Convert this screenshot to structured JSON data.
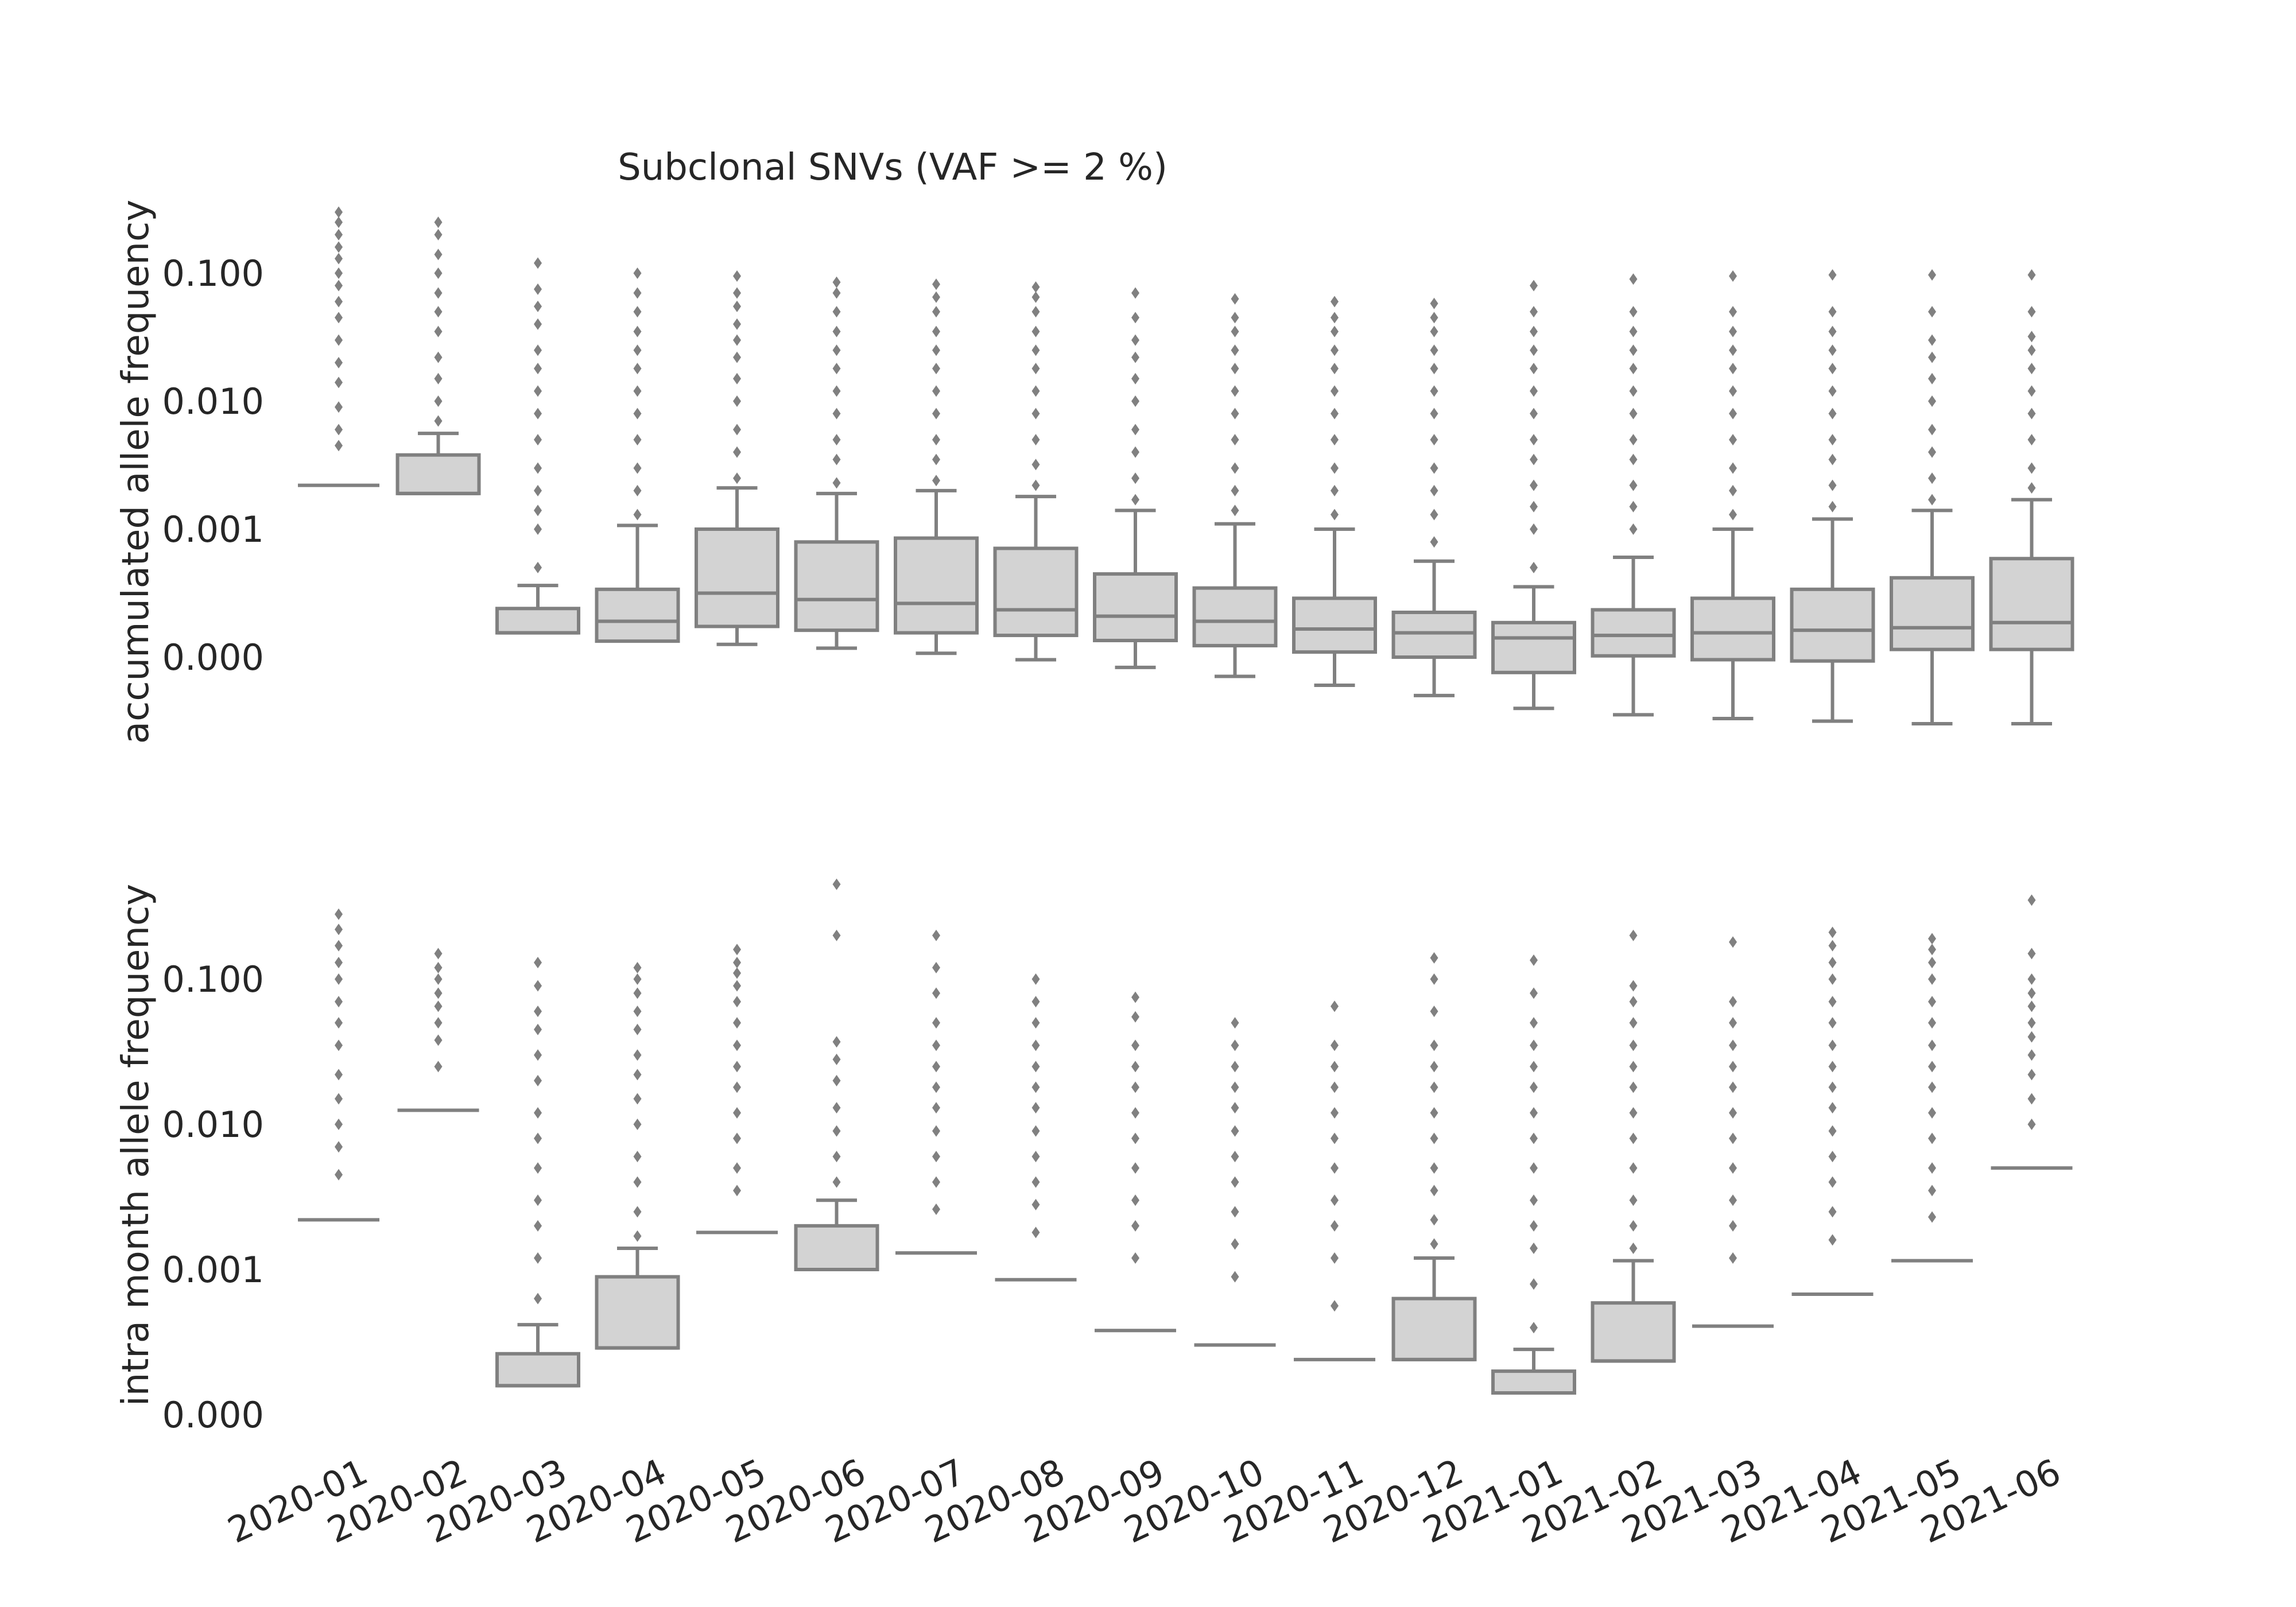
{
  "chart_data": {
    "type": "box",
    "title": "Subclonal SNVs (VAF >= 2 %)",
    "categories": [
      "2020-01",
      "2020-02",
      "2020-03",
      "2020-04",
      "2020-05",
      "2020-06",
      "2020-07",
      "2020-08",
      "2020-09",
      "2020-10",
      "2020-11",
      "2020-12",
      "2021-01",
      "2021-02",
      "2021-03",
      "2021-04",
      "2021-05",
      "2021-06"
    ],
    "xlabel": "",
    "box_color": "#d3d3d3",
    "line_color": "#808080",
    "grid": false,
    "panels": [
      {
        "id": "accumulated",
        "ylabel": "accumulated allele frequency",
        "yticks": [
          0.0,
          0.001,
          0.01,
          0.1
        ],
        "ytick_labels": [
          "0.000",
          "0.001",
          "0.010",
          "0.100"
        ],
        "boxes": [
          {
            "whislo": 0.0022,
            "q1": 0.0022,
            "med": 0.0022,
            "q3": 0.0022,
            "whishi": 0.0022,
            "fliers": [
              0.0045,
              0.006,
              0.009,
              0.014,
              0.02,
              0.03,
              0.045,
              0.06,
              0.08,
              0.1,
              0.13,
              0.16,
              0.2,
              0.25,
              0.3
            ]
          },
          {
            "whislo": 0.0019,
            "q1": 0.0019,
            "med": 0.0019,
            "q3": 0.0038,
            "whishi": 0.0056,
            "fliers": [
              0.007,
              0.01,
              0.015,
              0.022,
              0.035,
              0.05,
              0.07,
              0.1,
              0.14,
              0.2,
              0.25
            ]
          },
          {
            "whislo": 0.00019,
            "q1": 0.00019,
            "med": 0.00019,
            "q3": 0.00038,
            "whishi": 0.00056,
            "fliers": [
              0.0007,
              0.001,
              0.0014,
              0.002,
              0.003,
              0.005,
              0.008,
              0.012,
              0.018,
              0.025,
              0.04,
              0.055,
              0.075,
              0.12
            ]
          },
          {
            "whislo": 0.000125,
            "q1": 0.000125,
            "med": 0.00028,
            "q3": 0.00053,
            "whishi": 0.00107,
            "fliers": [
              0.0013,
              0.002,
              0.003,
              0.005,
              0.008,
              0.012,
              0.018,
              0.025,
              0.035,
              0.05,
              0.07,
              0.1
            ]
          },
          {
            "whislo": 0.0001,
            "q1": 0.00024,
            "med": 0.0005,
            "q3": 0.001,
            "whishi": 0.0021,
            "fliers": [
              0.0025,
              0.004,
              0.006,
              0.01,
              0.015,
              0.022,
              0.03,
              0.04,
              0.055,
              0.07,
              0.095
            ]
          },
          {
            "whislo": 7e-05,
            "q1": 0.00021,
            "med": 0.00045,
            "q3": 0.0009,
            "whishi": 0.0019,
            "fliers": [
              0.0023,
              0.0035,
              0.005,
              0.008,
              0.012,
              0.018,
              0.025,
              0.035,
              0.05,
              0.07,
              0.085
            ]
          },
          {
            "whislo": 3e-05,
            "q1": 0.00019,
            "med": 0.00042,
            "q3": 0.00093,
            "whishi": 0.002,
            "fliers": [
              0.0024,
              0.0035,
              0.005,
              0.008,
              0.012,
              0.018,
              0.025,
              0.035,
              0.05,
              0.065,
              0.082
            ]
          },
          {
            "whislo": -2e-05,
            "q1": 0.00017,
            "med": 0.00037,
            "q3": 0.00085,
            "whishi": 0.0018,
            "fliers": [
              0.0022,
              0.0032,
              0.005,
              0.008,
              0.012,
              0.018,
              0.025,
              0.035,
              0.05,
              0.065,
              0.078
            ]
          },
          {
            "whislo": -8e-05,
            "q1": 0.00013,
            "med": 0.00032,
            "q3": 0.00065,
            "whishi": 0.0014,
            "fliers": [
              0.0017,
              0.0025,
              0.004,
              0.006,
              0.01,
              0.015,
              0.022,
              0.03,
              0.045,
              0.07
            ]
          },
          {
            "whislo": -0.00015,
            "q1": 9e-05,
            "med": 0.00028,
            "q3": 0.00054,
            "whishi": 0.0011,
            "fliers": [
              0.0014,
              0.002,
              0.003,
              0.005,
              0.008,
              0.012,
              0.018,
              0.025,
              0.035,
              0.045,
              0.063
            ]
          },
          {
            "whislo": -0.00022,
            "q1": 4e-05,
            "med": 0.00022,
            "q3": 0.00046,
            "whishi": 0.001,
            "fliers": [
              0.0013,
              0.002,
              0.003,
              0.005,
              0.008,
              0.012,
              0.018,
              0.025,
              0.035,
              0.045,
              0.06
            ]
          },
          {
            "whislo": -0.0003,
            "q1": 0.0,
            "med": 0.00019,
            "q3": 0.00035,
            "whishi": 0.00075,
            "fliers": [
              0.0009,
              0.0013,
              0.002,
              0.003,
              0.005,
              0.008,
              0.012,
              0.018,
              0.025,
              0.035,
              0.045,
              0.058
            ]
          },
          {
            "whislo": -0.0004,
            "q1": -0.00012,
            "med": 0.00015,
            "q3": 0.00027,
            "whishi": 0.00055,
            "fliers": [
              0.0007,
              0.001,
              0.0015,
              0.0022,
              0.0035,
              0.005,
              0.008,
              0.012,
              0.018,
              0.025,
              0.035,
              0.05,
              0.08
            ]
          },
          {
            "whislo": -0.00045,
            "q1": 1e-05,
            "med": 0.00017,
            "q3": 0.00037,
            "whishi": 0.00078,
            "fliers": [
              0.001,
              0.0015,
              0.0022,
              0.0035,
              0.005,
              0.008,
              0.012,
              0.018,
              0.025,
              0.035,
              0.05,
              0.09
            ]
          },
          {
            "whislo": -0.00048,
            "q1": -2e-05,
            "med": 0.00019,
            "q3": 0.00046,
            "whishi": 0.001,
            "fliers": [
              0.0013,
              0.002,
              0.003,
              0.005,
              0.008,
              0.012,
              0.018,
              0.025,
              0.035,
              0.05,
              0.095
            ]
          },
          {
            "whislo": -0.0005,
            "q1": -3e-05,
            "med": 0.00021,
            "q3": 0.00053,
            "whishi": 0.0012,
            "fliers": [
              0.0015,
              0.0022,
              0.0035,
              0.005,
              0.008,
              0.012,
              0.018,
              0.025,
              0.035,
              0.05,
              0.097
            ]
          },
          {
            "whislo": -0.00052,
            "q1": 6e-05,
            "med": 0.00023,
            "q3": 0.00062,
            "whishi": 0.0014,
            "fliers": [
              0.0017,
              0.0025,
              0.004,
              0.006,
              0.01,
              0.015,
              0.022,
              0.03,
              0.05,
              0.097
            ]
          },
          {
            "whislo": -0.00052,
            "q1": 6e-05,
            "med": 0.00027,
            "q3": 0.00077,
            "whishi": 0.0017,
            "fliers": [
              0.0021,
              0.003,
              0.005,
              0.008,
              0.012,
              0.018,
              0.025,
              0.032,
              0.05,
              0.097
            ]
          }
        ]
      },
      {
        "id": "intra_month",
        "ylabel": "intra month allele frequency",
        "yticks": [
          0.0,
          0.001,
          0.01,
          0.1
        ],
        "ytick_labels": [
          "0.000",
          "0.001",
          "0.010",
          "0.100"
        ],
        "boxes": [
          {
            "whislo": 0.0022,
            "q1": 0.0022,
            "med": 0.0022,
            "q3": 0.0022,
            "whishi": 0.0022,
            "fliers": [
              0.0045,
              0.007,
              0.01,
              0.015,
              0.022,
              0.035,
              0.05,
              0.07,
              0.1,
              0.13,
              0.17,
              0.22,
              0.28
            ]
          },
          {
            "whislo": 0.0125,
            "q1": 0.0125,
            "med": 0.0125,
            "q3": 0.0125,
            "whishi": 0.0125,
            "fliers": [
              0.025,
              0.038,
              0.05,
              0.065,
              0.08,
              0.1,
              0.12,
              0.15
            ]
          },
          {
            "whislo": 0.0002,
            "q1": 0.0002,
            "med": 0.0002,
            "q3": 0.00042,
            "whishi": 0.00062,
            "fliers": [
              0.0008,
              0.0012,
              0.002,
              0.003,
              0.005,
              0.008,
              0.012,
              0.02,
              0.03,
              0.045,
              0.06,
              0.09,
              0.13
            ]
          },
          {
            "whislo": 0.00046,
            "q1": 0.00046,
            "med": 0.00046,
            "q3": 0.00095,
            "whishi": 0.0014,
            "fliers": [
              0.0017,
              0.0025,
              0.004,
              0.006,
              0.01,
              0.015,
              0.022,
              0.03,
              0.045,
              0.06,
              0.08,
              0.1,
              0.12
            ]
          },
          {
            "whislo": 0.0018,
            "q1": 0.0018,
            "med": 0.0018,
            "q3": 0.0018,
            "whishi": 0.0018,
            "fliers": [
              0.0035,
              0.005,
              0.008,
              0.012,
              0.018,
              0.025,
              0.035,
              0.05,
              0.07,
              0.09,
              0.11,
              0.13,
              0.16
            ]
          },
          {
            "whislo": 0.001,
            "q1": 0.001,
            "med": 0.001,
            "q3": 0.002,
            "whishi": 0.003,
            "fliers": [
              0.004,
              0.006,
              0.009,
              0.013,
              0.02,
              0.028,
              0.037,
              0.2,
              0.45
            ]
          },
          {
            "whislo": 0.0013,
            "q1": 0.0013,
            "med": 0.0013,
            "q3": 0.0013,
            "whishi": 0.0013,
            "fliers": [
              0.0026,
              0.004,
              0.006,
              0.009,
              0.013,
              0.018,
              0.025,
              0.035,
              0.05,
              0.08,
              0.12,
              0.2
            ]
          },
          {
            "whislo": 0.00093,
            "q1": 0.00093,
            "med": 0.00093,
            "q3": 0.00093,
            "whishi": 0.00093,
            "fliers": [
              0.0018,
              0.0028,
              0.004,
              0.006,
              0.009,
              0.013,
              0.018,
              0.025,
              0.035,
              0.05,
              0.07,
              0.1
            ]
          },
          {
            "whislo": 0.00058,
            "q1": 0.00058,
            "med": 0.00058,
            "q3": 0.00058,
            "whishi": 0.00058,
            "fliers": [
              0.0012,
              0.002,
              0.003,
              0.005,
              0.008,
              0.012,
              0.018,
              0.025,
              0.035,
              0.055,
              0.075
            ]
          },
          {
            "whislo": 0.00048,
            "q1": 0.00048,
            "med": 0.00048,
            "q3": 0.00048,
            "whishi": 0.00048,
            "fliers": [
              0.00095,
              0.0015,
              0.0025,
              0.004,
              0.006,
              0.009,
              0.013,
              0.018,
              0.025,
              0.035,
              0.05
            ]
          },
          {
            "whislo": 0.00038,
            "q1": 0.00038,
            "med": 0.00038,
            "q3": 0.00038,
            "whishi": 0.00038,
            "fliers": [
              0.00075,
              0.0012,
              0.002,
              0.003,
              0.005,
              0.008,
              0.012,
              0.018,
              0.025,
              0.035,
              0.065
            ]
          },
          {
            "whislo": 0.00038,
            "q1": 0.00038,
            "med": 0.00038,
            "q3": 0.0008,
            "whishi": 0.0012,
            "fliers": [
              0.0015,
              0.0022,
              0.0035,
              0.005,
              0.008,
              0.012,
              0.018,
              0.025,
              0.035,
              0.06,
              0.1,
              0.14
            ]
          },
          {
            "whislo": 0.00015,
            "q1": 0.00015,
            "med": 0.00015,
            "q3": 0.0003,
            "whishi": 0.00045,
            "fliers": [
              0.0006,
              0.0009,
              0.0014,
              0.002,
              0.003,
              0.005,
              0.008,
              0.012,
              0.018,
              0.025,
              0.035,
              0.05,
              0.08,
              0.135
            ]
          },
          {
            "whislo": 0.00037,
            "q1": 0.00037,
            "med": 0.00037,
            "q3": 0.00077,
            "whishi": 0.00115,
            "fliers": [
              0.0014,
              0.002,
              0.003,
              0.005,
              0.008,
              0.012,
              0.018,
              0.025,
              0.035,
              0.05,
              0.07,
              0.09,
              0.2
            ]
          },
          {
            "whislo": 0.00061,
            "q1": 0.00061,
            "med": 0.00061,
            "q3": 0.00061,
            "whishi": 0.00061,
            "fliers": [
              0.0012,
              0.002,
              0.003,
              0.005,
              0.008,
              0.012,
              0.018,
              0.025,
              0.035,
              0.05,
              0.07,
              0.18
            ]
          },
          {
            "whislo": 0.00083,
            "q1": 0.00083,
            "med": 0.00083,
            "q3": 0.00083,
            "whishi": 0.00083,
            "fliers": [
              0.0016,
              0.0025,
              0.004,
              0.006,
              0.009,
              0.013,
              0.018,
              0.025,
              0.035,
              0.05,
              0.07,
              0.1,
              0.13,
              0.17,
              0.21
            ]
          },
          {
            "whislo": 0.00115,
            "q1": 0.00115,
            "med": 0.00115,
            "q3": 0.00115,
            "whishi": 0.00115,
            "fliers": [
              0.0023,
              0.0035,
              0.005,
              0.008,
              0.012,
              0.018,
              0.025,
              0.035,
              0.05,
              0.07,
              0.1,
              0.13,
              0.16,
              0.19
            ]
          },
          {
            "whislo": 0.005,
            "q1": 0.005,
            "med": 0.005,
            "q3": 0.005,
            "whishi": 0.005,
            "fliers": [
              0.01,
              0.015,
              0.022,
              0.03,
              0.04,
              0.05,
              0.065,
              0.08,
              0.1,
              0.15,
              0.35
            ]
          }
        ]
      }
    ]
  }
}
